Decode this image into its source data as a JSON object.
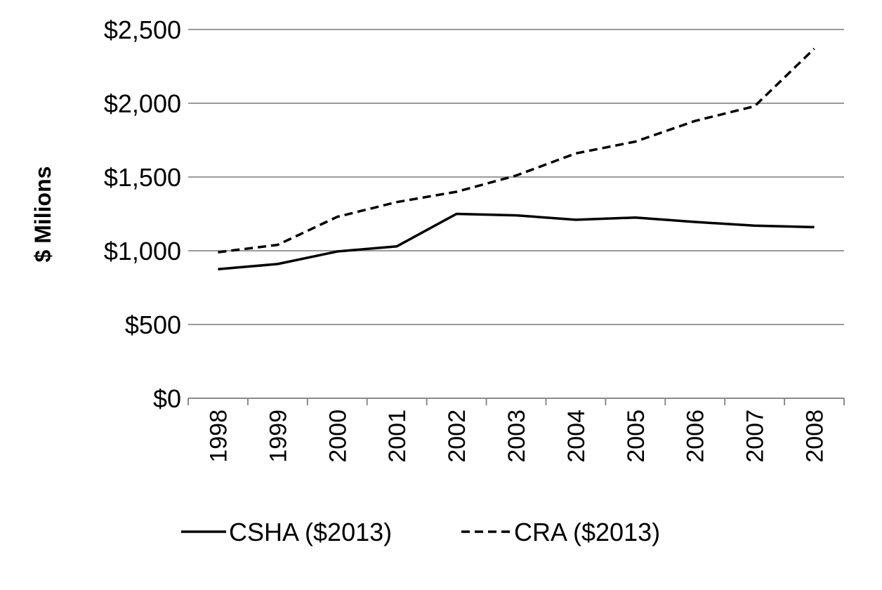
{
  "chart_data": {
    "type": "line",
    "title": "",
    "xlabel": "",
    "ylabel": "$ Milions",
    "categories": [
      "1998",
      "1999",
      "2000",
      "2001",
      "2002",
      "2003",
      "2004",
      "2005",
      "2006",
      "2007",
      "2008"
    ],
    "ylim": [
      0,
      2500
    ],
    "yticks": [
      0,
      500,
      1000,
      1500,
      2000,
      2500
    ],
    "ytick_labels": [
      "$0",
      "$500",
      "$1,000",
      "$1,500",
      "$2,000",
      "$2,500"
    ],
    "grid": "horizontal",
    "legend_position": "bottom",
    "series": [
      {
        "name": "CSHA ($2013)",
        "style": "solid",
        "color": "#000000",
        "values": [
          875,
          910,
          995,
          1030,
          1250,
          1240,
          1210,
          1225,
          1195,
          1170,
          1160
        ]
      },
      {
        "name": "CRA  ($2013)",
        "style": "dashed",
        "color": "#000000",
        "values": [
          990,
          1040,
          1230,
          1330,
          1400,
          1510,
          1660,
          1740,
          1880,
          1980,
          2370
        ]
      }
    ]
  }
}
